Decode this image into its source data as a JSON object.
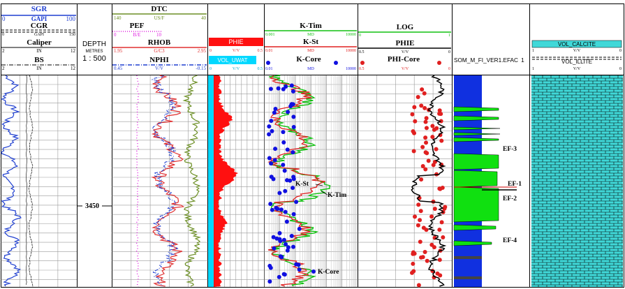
{
  "track1": {
    "sgr": {
      "label": "SGR",
      "unit": "GAPI",
      "min": "0",
      "max": "100"
    },
    "cgr": {
      "label": "CGR",
      "unit": "GAPI",
      "min": "0",
      "max": "150"
    },
    "caliper": {
      "label": "Caliper",
      "unit": "IN",
      "min": "2",
      "max": "12"
    },
    "bs": {
      "label": "BS",
      "unit": "IN",
      "min": "2",
      "max": "12"
    }
  },
  "depth": {
    "title": "DEPTH",
    "unit": "METRES",
    "scale": "1 : 500",
    "marker": "3450"
  },
  "track2": {
    "dtc": {
      "label": "DTC",
      "unit": "US/F",
      "min": "140",
      "max": "40"
    },
    "pef": {
      "label": "PEF",
      "unit": "B/E",
      "min": "0",
      "max": "10"
    },
    "rhob": {
      "label": "RHOB",
      "unit": "G/C3",
      "min": "1.95",
      "max": "2.95"
    },
    "nphi": {
      "label": "NPHI",
      "unit": "V/V",
      "min": "0.45",
      "max": "-0.15"
    }
  },
  "track3": {
    "phie": {
      "label": "PHIE",
      "unit": "V/V",
      "min": "0",
      "max": "0.5"
    },
    "vol_uwat": {
      "label": "VOL_UWAT",
      "unit": "V/V",
      "min": "0",
      "max": "0.5"
    }
  },
  "track4": {
    "ktim": {
      "label": "K-Tim",
      "unit": "MD",
      "min": "0.001",
      "max": "10000"
    },
    "kst": {
      "label": "K-St",
      "unit": "MD",
      "min": "0.01",
      "max": "10000"
    },
    "kcore": {
      "label": "K-Core",
      "unit": "MD",
      "min": "0.01",
      "max": "10000"
    },
    "annotations": {
      "kst": "K-St",
      "ktim": "K-Tim",
      "kcore": "K-Core"
    }
  },
  "track5": {
    "log": {
      "label": "LOG",
      "min": "0",
      "max": "1"
    },
    "phie": {
      "label": "PHIE",
      "unit": "V/V",
      "min": "0.5",
      "max": "0"
    },
    "phicore": {
      "label": "PHI-Core",
      "unit": "V/V",
      "min": "0.5",
      "max": "0"
    }
  },
  "track6": {
    "label": "SOM_M_FI_VER1.EFAC",
    "min": "1"
  },
  "efacies": {
    "ef3": "EF-3",
    "ef1": "EF-1",
    "ef2": "EF-2",
    "ef4": "EF-4"
  },
  "track7": {
    "calcite": {
      "label": "VOL_CALCITE",
      "unit": "V/V",
      "min": "1",
      "max": "0"
    },
    "illite": {
      "label": "VOL_ILLITE",
      "unit": "V/V",
      "min": "1",
      "max": "0"
    }
  },
  "colors": {
    "sgr": "#1f3fd0",
    "cgr": "#222222",
    "caliper": "#222222",
    "dtc": "#6b8e23",
    "pef": "#e020e0",
    "rhob": "#e03030",
    "nphi": "#1f3fd0",
    "phie_fill": "#ff1010",
    "vol_uwat": "#00d8ff",
    "ktim": "#10c010",
    "kst": "#e02020",
    "kcore": "#1010e0",
    "log": "#10c010",
    "phicore": "#e02020",
    "efac_blue": "#1030e0",
    "efac_green": "#10e010",
    "calcite": "#40d8d8"
  }
}
